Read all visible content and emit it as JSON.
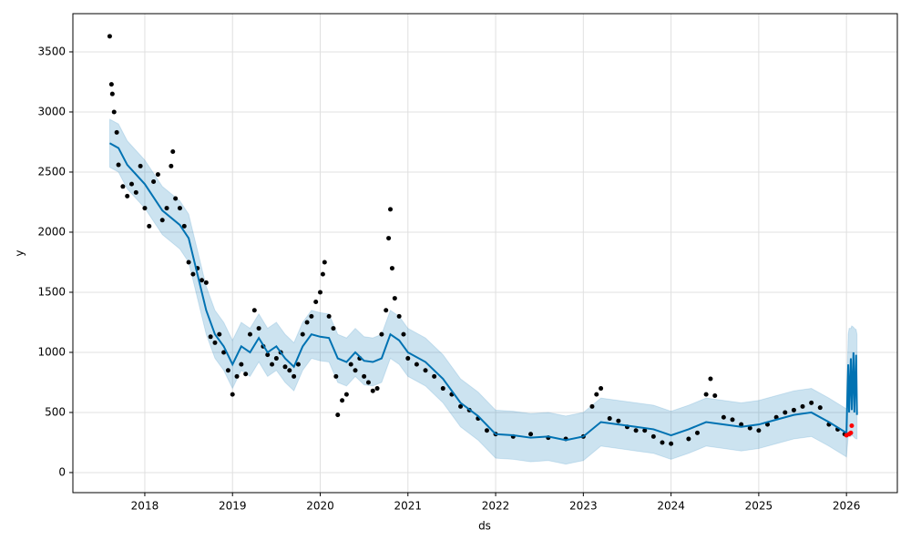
{
  "chart_data": {
    "type": "forecast",
    "xlabel": "ds",
    "ylabel": "y",
    "xlim": [
      2017.18,
      2026.58
    ],
    "xticks": [
      2018,
      2019,
      2020,
      2021,
      2022,
      2023,
      2024,
      2025,
      2026
    ],
    "ylim": [
      -167,
      3818
    ],
    "yticks": [
      0,
      500,
      1000,
      1500,
      2000,
      2500,
      3000,
      3500
    ],
    "grid": true,
    "observed": {
      "color": "#000000",
      "x": [
        2017.6,
        2017.62,
        2017.63,
        2017.65,
        2017.68,
        2017.7,
        2017.75,
        2017.8,
        2017.85,
        2017.9,
        2017.95,
        2018.0,
        2018.05,
        2018.1,
        2018.15,
        2018.2,
        2018.25,
        2018.3,
        2018.32,
        2018.35,
        2018.4,
        2018.45,
        2018.5,
        2018.55,
        2018.6,
        2018.65,
        2018.7,
        2018.75,
        2018.8,
        2018.85,
        2018.9,
        2018.95,
        2019.0,
        2019.05,
        2019.1,
        2019.15,
        2019.2,
        2019.25,
        2019.3,
        2019.35,
        2019.4,
        2019.45,
        2019.5,
        2019.55,
        2019.6,
        2019.65,
        2019.7,
        2019.75,
        2019.8,
        2019.85,
        2019.9,
        2019.95,
        2020.0,
        2020.03,
        2020.05,
        2020.1,
        2020.15,
        2020.18,
        2020.2,
        2020.25,
        2020.3,
        2020.35,
        2020.4,
        2020.45,
        2020.5,
        2020.55,
        2020.6,
        2020.65,
        2020.7,
        2020.75,
        2020.78,
        2020.8,
        2020.82,
        2020.85,
        2020.9,
        2020.95,
        2021.0,
        2021.1,
        2021.2,
        2021.3,
        2021.4,
        2021.5,
        2021.6,
        2021.7,
        2021.8,
        2021.9,
        2022.0,
        2022.2,
        2022.4,
        2022.6,
        2022.8,
        2023.0,
        2023.1,
        2023.15,
        2023.2,
        2023.3,
        2023.4,
        2023.5,
        2023.6,
        2023.7,
        2023.8,
        2023.9,
        2024.0,
        2024.2,
        2024.3,
        2024.4,
        2024.45,
        2024.5,
        2024.6,
        2024.7,
        2024.8,
        2024.9,
        2025.0,
        2025.1,
        2025.2,
        2025.3,
        2025.4,
        2025.5,
        2025.6,
        2025.7,
        2025.8,
        2025.9,
        2025.98
      ],
      "values": [
        3630,
        3230,
        3150,
        3000,
        2830,
        2560,
        2380,
        2300,
        2400,
        2330,
        2550,
        2200,
        2050,
        2420,
        2480,
        2100,
        2200,
        2550,
        2670,
        2280,
        2200,
        2050,
        1750,
        1650,
        1700,
        1600,
        1580,
        1130,
        1080,
        1150,
        1000,
        850,
        650,
        800,
        900,
        820,
        1150,
        1350,
        1200,
        1050,
        980,
        900,
        950,
        1000,
        880,
        850,
        800,
        900,
        1150,
        1250,
        1300,
        1420,
        1500,
        1650,
        1750,
        1300,
        1200,
        800,
        480,
        600,
        650,
        900,
        850,
        950,
        800,
        750,
        680,
        700,
        1150,
        1350,
        1950,
        2190,
        1700,
        1450,
        1300,
        1150,
        950,
        900,
        850,
        800,
        700,
        650,
        550,
        520,
        450,
        350,
        320,
        300,
        320,
        290,
        280,
        300,
        550,
        650,
        700,
        450,
        430,
        380,
        350,
        350,
        300,
        250,
        240,
        280,
        330,
        650,
        780,
        640,
        460,
        440,
        400,
        370,
        350,
        400,
        460,
        500,
        520,
        550,
        580,
        540,
        400,
        360,
        320
      ]
    },
    "future": {
      "color": "#ff0000",
      "x": [
        2026.0,
        2026.03,
        2026.05,
        2026.06
      ],
      "values": [
        310,
        320,
        330,
        390
      ]
    },
    "forecast": {
      "color": "#0072b2",
      "band_color": "#0072b2",
      "x": [
        2017.6,
        2017.7,
        2017.8,
        2018.0,
        2018.2,
        2018.4,
        2018.5,
        2018.6,
        2018.7,
        2018.8,
        2018.9,
        2019.0,
        2019.1,
        2019.2,
        2019.3,
        2019.4,
        2019.5,
        2019.6,
        2019.7,
        2019.8,
        2019.9,
        2020.0,
        2020.1,
        2020.2,
        2020.3,
        2020.4,
        2020.5,
        2020.6,
        2020.7,
        2020.8,
        2020.9,
        2021.0,
        2021.2,
        2021.4,
        2021.6,
        2021.8,
        2022.0,
        2022.2,
        2022.4,
        2022.6,
        2022.8,
        2023.0,
        2023.2,
        2023.4,
        2023.6,
        2023.8,
        2024.0,
        2024.2,
        2024.4,
        2024.6,
        2024.8,
        2025.0,
        2025.2,
        2025.4,
        2025.6,
        2025.8,
        2026.0,
        2026.02,
        2026.03,
        2026.05,
        2026.06,
        2026.08,
        2026.09,
        2026.11,
        2026.12
      ],
      "values": [
        2740,
        2700,
        2560,
        2400,
        2180,
        2060,
        1950,
        1650,
        1350,
        1150,
        1050,
        900,
        1050,
        1000,
        1120,
        1000,
        1050,
        950,
        880,
        1050,
        1150,
        1130,
        1120,
        950,
        920,
        1000,
        930,
        920,
        950,
        1150,
        1100,
        1000,
        920,
        780,
        580,
        470,
        320,
        310,
        290,
        300,
        270,
        300,
        420,
        400,
        380,
        360,
        310,
        360,
        420,
        400,
        380,
        400,
        440,
        480,
        500,
        420,
        330,
        900,
        500,
        950,
        520,
        1000,
        500,
        980,
        480
      ],
      "upper": [
        2940,
        2900,
        2760,
        2600,
        2380,
        2260,
        2150,
        1850,
        1550,
        1350,
        1250,
        1100,
        1250,
        1200,
        1320,
        1200,
        1250,
        1150,
        1080,
        1250,
        1350,
        1330,
        1320,
        1150,
        1120,
        1200,
        1130,
        1120,
        1150,
        1350,
        1300,
        1200,
        1120,
        980,
        780,
        670,
        520,
        510,
        490,
        500,
        470,
        500,
        620,
        600,
        580,
        560,
        510,
        560,
        620,
        600,
        580,
        600,
        640,
        680,
        700,
        620,
        530,
        1150,
        1200,
        1200,
        1220,
        1210,
        1200,
        1190,
        1150
      ],
      "lower": [
        2540,
        2500,
        2360,
        2200,
        1980,
        1860,
        1750,
        1450,
        1150,
        950,
        850,
        700,
        850,
        800,
        920,
        800,
        850,
        750,
        680,
        850,
        950,
        930,
        920,
        750,
        720,
        800,
        730,
        720,
        750,
        950,
        900,
        800,
        720,
        580,
        380,
        270,
        120,
        110,
        90,
        100,
        70,
        100,
        220,
        200,
        180,
        160,
        110,
        160,
        220,
        200,
        180,
        200,
        240,
        280,
        300,
        220,
        130,
        300,
        300,
        300,
        310,
        300,
        290,
        280,
        280
      ]
    }
  }
}
